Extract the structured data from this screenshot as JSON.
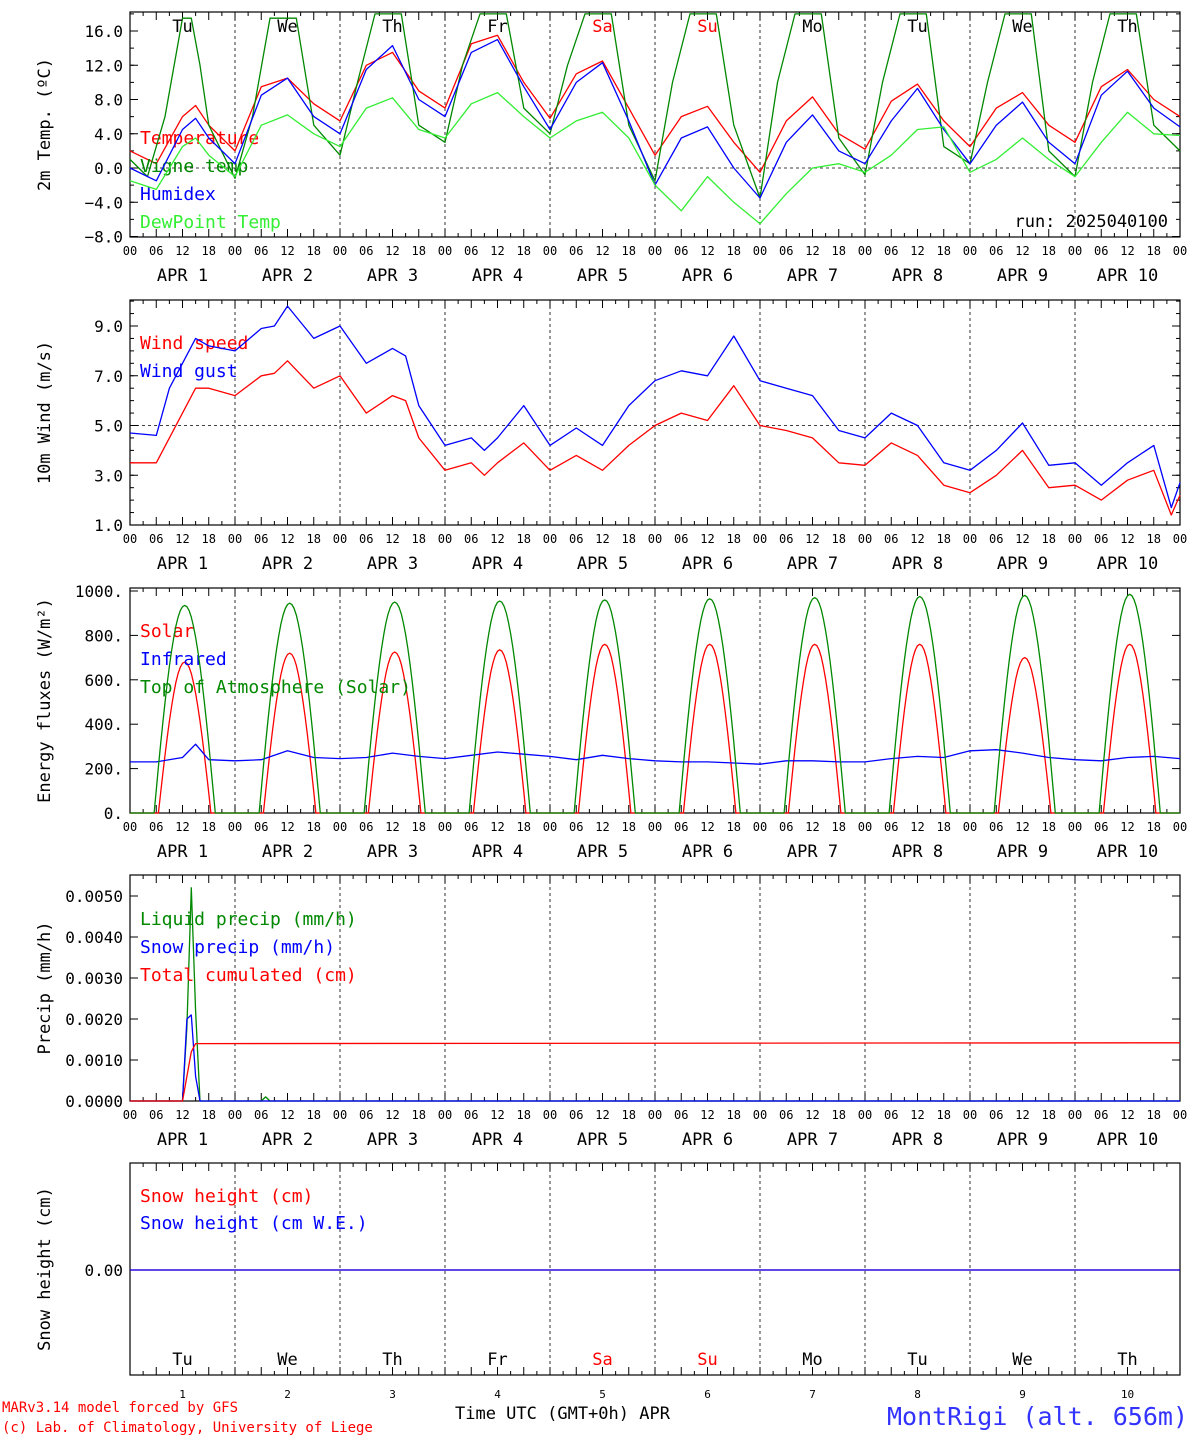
{
  "footer": {
    "credit_line1": "MARv3.14 model forced by GFS",
    "credit_line2": "(c) Lab. of Climatology, University of Liege",
    "time_axis_label": "Time UTC (GMT+0h) APR",
    "station": "MontRigi (alt. 656m)"
  },
  "run_label": "run: 2025040100",
  "day_names": [
    "Tu",
    "We",
    "Th",
    "Fr",
    "Sa",
    "Su",
    "Mo",
    "Tu",
    "We",
    "Th"
  ],
  "weekend_day_names": [
    "Sa",
    "Su"
  ],
  "day_numbers": [
    "1",
    "2",
    "3",
    "4",
    "5",
    "6",
    "7",
    "8",
    "9",
    "10"
  ],
  "date_labels": [
    "APR  1",
    "APR  2",
    "APR  3",
    "APR  4",
    "APR  5",
    "APR  6",
    "APR  7",
    "APR  8",
    "APR  9",
    "APR 10"
  ],
  "hour_ticks": [
    "00",
    "06",
    "12",
    "18"
  ],
  "colors": {
    "red": "#ff0000",
    "green": "#008800",
    "blue": "#0000ff",
    "lightgreen": "#33ee33"
  },
  "chart_data": [
    {
      "type": "line",
      "ylabel": "2m Temp. (ºC)",
      "ylim": [
        -8,
        18
      ],
      "yticks": [
        "16.0",
        "12.0",
        "8.0",
        "4.0",
        "0.0",
        "−4.0",
        "−8.0"
      ],
      "ytick_values": [
        16,
        12,
        8,
        4,
        0,
        -4,
        -8
      ],
      "ref_line": 0,
      "x_unit": "hours since APR 1 00 UTC",
      "series": [
        {
          "name": "Temperature",
          "color": "red",
          "x": [
            0,
            6,
            12,
            15,
            18,
            24,
            30,
            36,
            42,
            48,
            54,
            60,
            66,
            72,
            78,
            84,
            90,
            96,
            102,
            108,
            114,
            120,
            126,
            132,
            138,
            144,
            150,
            156,
            162,
            168,
            174,
            180,
            186,
            192,
            198,
            204,
            210,
            216,
            222,
            228,
            234,
            240
          ],
          "values": [
            2.0,
            0.5,
            6.0,
            7.3,
            5.0,
            2.0,
            9.5,
            10.5,
            7.5,
            5.5,
            12.0,
            13.5,
            9.0,
            7.0,
            14.5,
            15.5,
            10.0,
            5.8,
            11.0,
            12.5,
            7.0,
            1.5,
            6.0,
            7.2,
            3.0,
            -0.5,
            5.5,
            8.3,
            4.0,
            2.2,
            7.8,
            9.8,
            5.5,
            2.5,
            7.0,
            8.8,
            5.0,
            3.0,
            9.5,
            11.5,
            8.0,
            6.0
          ]
        },
        {
          "name": "Vigne temp",
          "color": "green",
          "x": [
            0,
            4,
            8,
            12,
            14,
            16,
            18,
            24,
            28,
            32,
            38,
            42,
            48,
            52,
            56,
            62,
            66,
            72,
            76,
            80,
            86,
            90,
            96,
            100,
            104,
            110,
            114,
            120,
            124,
            128,
            134,
            138,
            144,
            148,
            152,
            158,
            162,
            168,
            172,
            176,
            182,
            186,
            192,
            196,
            200,
            206,
            210,
            216,
            220,
            224,
            230,
            234,
            240
          ],
          "values": [
            1.0,
            -1.0,
            6.0,
            17.5,
            17.5,
            12.0,
            5.0,
            -1.2,
            6.0,
            17.5,
            17.5,
            5.0,
            1.5,
            10.0,
            18.0,
            18.0,
            5.0,
            3.0,
            12.0,
            18.0,
            18.0,
            7.0,
            4.0,
            12.0,
            18.0,
            18.0,
            5.0,
            -1.5,
            10.0,
            18.0,
            18.0,
            5.0,
            -3.5,
            10.0,
            18.0,
            18.0,
            3.5,
            -0.8,
            10.0,
            18.0,
            18.0,
            2.5,
            0.5,
            10.0,
            18.0,
            18.0,
            2.0,
            -1.0,
            10.0,
            18.0,
            18.0,
            5.0,
            2.0
          ]
        },
        {
          "name": "Humidex",
          "color": "blue",
          "x": [
            0,
            6,
            12,
            15,
            18,
            24,
            30,
            36,
            42,
            48,
            54,
            60,
            66,
            72,
            78,
            84,
            90,
            96,
            102,
            108,
            114,
            120,
            126,
            132,
            138,
            144,
            150,
            156,
            162,
            168,
            174,
            180,
            186,
            192,
            198,
            204,
            210,
            216,
            222,
            228,
            234,
            240
          ],
          "values": [
            0.0,
            -1.5,
            4.5,
            5.8,
            3.5,
            0.5,
            8.5,
            10.5,
            6.0,
            4.0,
            11.5,
            14.3,
            8.0,
            6.0,
            13.5,
            15.0,
            9.5,
            4.5,
            10.0,
            12.3,
            5.5,
            -2.0,
            3.5,
            4.8,
            0.0,
            -3.5,
            3.0,
            6.2,
            2.0,
            0.5,
            5.5,
            9.3,
            4.5,
            0.5,
            5.0,
            7.7,
            3.0,
            0.5,
            8.5,
            11.3,
            7.0,
            4.8
          ]
        },
        {
          "name": "DewPoint Temp",
          "color": "lightgreen",
          "x": [
            0,
            6,
            12,
            15,
            18,
            24,
            30,
            36,
            42,
            48,
            54,
            60,
            66,
            72,
            78,
            84,
            90,
            96,
            102,
            108,
            114,
            120,
            126,
            132,
            138,
            144,
            150,
            156,
            162,
            168,
            174,
            180,
            186,
            192,
            198,
            204,
            210,
            216,
            222,
            228,
            234,
            240
          ],
          "values": [
            -1.5,
            -2.5,
            2.5,
            3.5,
            1.5,
            -1.0,
            5.0,
            6.2,
            4.0,
            2.5,
            7.0,
            8.2,
            4.5,
            3.5,
            7.5,
            8.8,
            6.0,
            3.5,
            5.5,
            6.5,
            3.5,
            -2.0,
            -5.0,
            -1.0,
            -4.0,
            -6.5,
            -3.0,
            0.0,
            0.5,
            -0.5,
            1.5,
            4.5,
            4.8,
            -0.5,
            1.0,
            3.5,
            1.0,
            -1.0,
            3.0,
            6.5,
            4.0,
            3.8
          ]
        }
      ]
    },
    {
      "type": "line",
      "ylabel": "10m Wind (m/s)",
      "ylim": [
        1,
        10
      ],
      "yticks": [
        "9.0",
        "7.0",
        "5.0",
        "3.0",
        "1.0"
      ],
      "ytick_values": [
        9,
        7,
        5,
        3,
        1
      ],
      "ref_line": 5,
      "x_unit": "hours since APR 1 00 UTC",
      "series": [
        {
          "name": "Wind speed",
          "color": "red",
          "x": [
            0,
            6,
            9,
            15,
            18,
            24,
            30,
            33,
            36,
            42,
            48,
            54,
            60,
            63,
            66,
            72,
            78,
            81,
            84,
            90,
            96,
            102,
            108,
            114,
            120,
            126,
            132,
            138,
            144,
            150,
            156,
            162,
            168,
            174,
            180,
            186,
            192,
            198,
            204,
            210,
            216,
            222,
            228,
            234,
            238,
            240
          ],
          "values": [
            3.5,
            3.5,
            4.5,
            6.5,
            6.5,
            6.2,
            7.0,
            7.1,
            7.6,
            6.5,
            7.0,
            5.5,
            6.2,
            6.0,
            4.5,
            3.2,
            3.5,
            3.0,
            3.5,
            4.3,
            3.2,
            3.8,
            3.2,
            4.2,
            5.0,
            5.5,
            5.2,
            6.6,
            5.0,
            4.8,
            4.5,
            3.5,
            3.4,
            4.3,
            3.8,
            2.6,
            2.3,
            3.0,
            4.0,
            2.5,
            2.6,
            2.0,
            2.8,
            3.2,
            1.4,
            2.2
          ]
        },
        {
          "name": "Wind gust",
          "color": "blue",
          "x": [
            0,
            6,
            9,
            15,
            18,
            24,
            30,
            33,
            36,
            42,
            48,
            54,
            60,
            63,
            66,
            72,
            78,
            81,
            84,
            90,
            96,
            102,
            108,
            114,
            120,
            126,
            132,
            138,
            144,
            150,
            156,
            162,
            168,
            174,
            180,
            186,
            192,
            198,
            204,
            210,
            216,
            222,
            228,
            234,
            238,
            240
          ],
          "values": [
            4.7,
            4.6,
            6.5,
            8.5,
            8.2,
            8.0,
            8.9,
            9.0,
            9.8,
            8.5,
            9.0,
            7.5,
            8.1,
            7.8,
            5.8,
            4.2,
            4.5,
            4.0,
            4.5,
            5.8,
            4.2,
            4.9,
            4.2,
            5.8,
            6.8,
            7.2,
            7.0,
            8.6,
            6.8,
            6.5,
            6.2,
            4.8,
            4.5,
            5.5,
            5.0,
            3.5,
            3.2,
            4.0,
            5.1,
            3.4,
            3.5,
            2.6,
            3.5,
            4.2,
            1.7,
            2.7
          ]
        }
      ]
    },
    {
      "type": "line",
      "ylabel": "Energy fluxes (W/m²)",
      "ylim": [
        0,
        1000
      ],
      "yticks": [
        "1000.",
        "800.",
        "600.",
        "400.",
        "200.",
        "0."
      ],
      "ytick_values": [
        1000,
        800,
        600,
        400,
        200,
        0
      ],
      "x_unit": "hours since APR 1 00 UTC",
      "series": [
        {
          "name": "Solar",
          "color": "red",
          "peak_hour": 12.5,
          "half_width": 6,
          "daily_peaks": [
            680,
            720,
            725,
            735,
            760,
            760,
            760,
            760,
            700,
            760
          ]
        },
        {
          "name": "Infrared",
          "color": "blue",
          "x": [
            0,
            6,
            12,
            15,
            18,
            24,
            30,
            36,
            42,
            48,
            54,
            60,
            66,
            72,
            78,
            84,
            90,
            96,
            102,
            108,
            114,
            120,
            126,
            132,
            138,
            144,
            150,
            156,
            162,
            168,
            174,
            180,
            186,
            192,
            198,
            204,
            210,
            216,
            222,
            228,
            234,
            240
          ],
          "values": [
            230,
            230,
            250,
            310,
            240,
            235,
            240,
            280,
            250,
            245,
            250,
            270,
            255,
            245,
            260,
            275,
            265,
            255,
            240,
            260,
            245,
            235,
            230,
            230,
            225,
            220,
            235,
            235,
            230,
            230,
            245,
            255,
            250,
            280,
            285,
            270,
            250,
            240,
            235,
            250,
            255,
            245
          ]
        },
        {
          "name": "Top of Atmosphere (Solar)",
          "color": "green",
          "peak_hour": 12.5,
          "half_width": 7,
          "daily_peaks": [
            935,
            945,
            950,
            955,
            960,
            965,
            970,
            975,
            980,
            985
          ]
        }
      ]
    },
    {
      "type": "line",
      "ylabel": "Precip (mm/h)",
      "ylim": [
        0,
        0.0055
      ],
      "yticks": [
        "0.0050",
        "0.0040",
        "0.0030",
        "0.0020",
        "0.0010",
        "0.0000"
      ],
      "ytick_values": [
        0.005,
        0.004,
        0.003,
        0.002,
        0.001,
        0
      ],
      "x_unit": "hours since APR 1 00 UTC",
      "series": [
        {
          "name": "Liquid precip (mm/h)",
          "color": "green",
          "x": [
            0,
            12,
            13,
            14,
            15,
            16,
            30,
            31,
            32,
            240
          ],
          "values": [
            0,
            0,
            0.0018,
            0.0052,
            0.0022,
            0,
            0,
            0.0001,
            0,
            0
          ]
        },
        {
          "name": "Snow precip (mm/h)",
          "color": "blue",
          "x": [
            0,
            12,
            13,
            14,
            15,
            16,
            240
          ],
          "values": [
            0,
            0,
            0.002,
            0.0021,
            0.0006,
            0,
            0
          ]
        },
        {
          "name": "Total cumulated (cm)",
          "color": "red",
          "x": [
            0,
            12,
            14,
            15,
            240
          ],
          "values": [
            0,
            0,
            0.0012,
            0.0014,
            0.00142
          ]
        }
      ]
    },
    {
      "type": "line",
      "ylabel": "Snow height (cm)",
      "yticks": [
        "0.00"
      ],
      "ytick_values": [
        0
      ],
      "x_unit": "hours since APR 1 00 UTC",
      "series": [
        {
          "name": "Snow height (cm)",
          "color": "red",
          "x": [
            0,
            240
          ],
          "values": [
            0,
            0
          ]
        },
        {
          "name": "Snow height (cm W.E.)",
          "color": "blue",
          "x": [
            0,
            240
          ],
          "values": [
            0,
            0
          ]
        }
      ]
    }
  ]
}
